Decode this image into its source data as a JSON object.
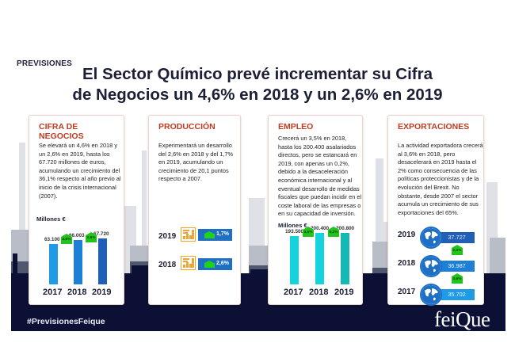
{
  "header": {
    "kicker": "PREVISIONES",
    "headline_line1": "El Sector Químico prevé incrementar su Cifra",
    "headline_line2": "de Negocios un 4,6% en 2018 y un 2,6% en 2019"
  },
  "colors": {
    "title_red": "#c23b22",
    "navy": "#0b1034",
    "growth_green": "#22c41b",
    "blue_dark": "#1f5fb8",
    "blue_mid": "#1d7fd8",
    "blue_light": "#1e9be6",
    "cyan": "#15d3dc",
    "teal": "#14b8b4",
    "orange": "#f0a530"
  },
  "cards": {
    "cifra": {
      "title": "CIFRA DE NEGOCIOS",
      "text": "Se elevará un 4,6% en 2018 y un 2,6% en 2019, hasta los 67.720 millones de euros, acumulando un crecimiento del 36,1% respecto al año previo al inicio de la crisis internacional (2007).",
      "units": "Millones €"
    },
    "produccion": {
      "title": "PRODUCCIÓN",
      "text": "Experimentará un desarrollo del 2,6% en 2018 y del 1,7% en 2019, acumulando un crecimiento de 20,1 puntos respecto a 2007.",
      "rows": [
        {
          "year": "2019",
          "growth": "1,7%"
        },
        {
          "year": "2018",
          "growth": "2,6%"
        }
      ]
    },
    "empleo": {
      "title": "EMPLEO",
      "text": "Crecerá un 3,5% en 2018, hasta los 200.400 asalariados directos, pero se estancará en 2019, con apenas un 0,2%, debido a la desaceleración económica internacional y al eventual desarrollo de medidas fiscales que puedan incidir en el coste laboral de las empresas o en su capacidad de inversión.",
      "units": "Millones €"
    },
    "exportaciones": {
      "title": "EXPORTACIONES",
      "text": "La actividad exportadora crecerá al 3,6% en 2018, pero desacelerará en 2019 hasta el 2% como consecuencia de las políticas proteccionistas y de la evolución del Brexit. No obstante, desde 2007 el sector acumula un crecimiento de sus exportaciones del 65%.",
      "rows": [
        {
          "year": "2019",
          "value": "37.727"
        },
        {
          "year": "2018",
          "value": "36.987"
        },
        {
          "year": "2017",
          "value": "35.702"
        }
      ],
      "growth": [
        "2,0%",
        "3,6%"
      ]
    }
  },
  "chart_data": [
    {
      "type": "bar",
      "title": "Cifra de Negocios",
      "ylabel": "Millones €",
      "categories": [
        "2017",
        "2018",
        "2019"
      ],
      "values": [
        63100,
        66003,
        67720
      ],
      "value_labels": [
        "63.100",
        "66.003",
        "67.720"
      ],
      "growth_labels": [
        "4,6%",
        "2,6%"
      ],
      "ylim": [
        30000,
        70000
      ]
    },
    {
      "type": "bar",
      "title": "Empleo",
      "ylabel": "Millones €",
      "categories": [
        "2017",
        "2018",
        "2019"
      ],
      "values": [
        193500,
        200400,
        200800
      ],
      "value_labels": [
        "193.500",
        "200.400",
        "200.800"
      ],
      "growth_labels": [
        "3,5%",
        "0,2%"
      ],
      "ylim": [
        100000,
        202000
      ]
    }
  ],
  "footer": {
    "hashtag": "#PrevisionesFeique",
    "logo": "feiQue"
  }
}
